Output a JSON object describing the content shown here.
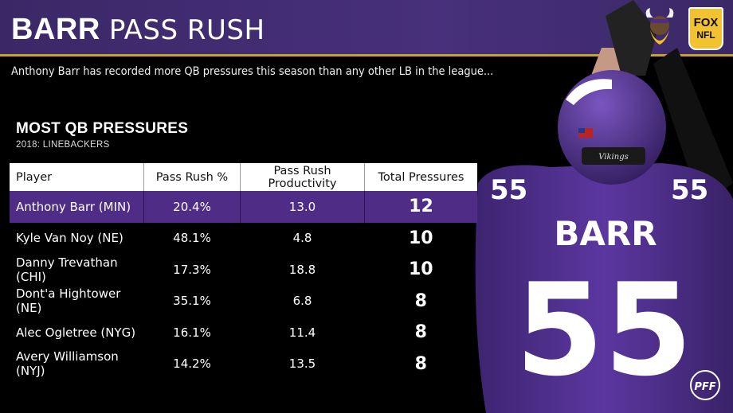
{
  "header": {
    "title_bold": "BARR",
    "title_light": "PASS RUSH"
  },
  "subtitle": "Anthony Barr has recorded more QB pressures this season than any other LB in the league...",
  "table": {
    "title": "MOST QB PRESSURES",
    "subtitle": "2018: LINEBACKERS",
    "columns": [
      "Player",
      "Pass Rush %",
      "Pass Rush Productivity",
      "Total Pressures"
    ],
    "rows": [
      {
        "player": "Anthony Barr (MIN)",
        "pass_rush_pct": "20.4%",
        "prp": "13.0",
        "total": "12",
        "highlight": true
      },
      {
        "player": "Kyle Van Noy (NE)",
        "pass_rush_pct": "48.1%",
        "prp": "4.8",
        "total": "10"
      },
      {
        "player": "Danny Trevathan (CHI)",
        "pass_rush_pct": "17.3%",
        "prp": "18.8",
        "total": "10"
      },
      {
        "player": "Dont'a Hightower (NE)",
        "pass_rush_pct": "35.1%",
        "prp": "6.8",
        "total": "8"
      },
      {
        "player": "Alec Ogletree (NYG)",
        "pass_rush_pct": "16.1%",
        "prp": "11.4",
        "total": "8"
      },
      {
        "player": "Avery Williamson (NYJ)",
        "pass_rush_pct": "14.2%",
        "prp": "13.5",
        "total": "8"
      }
    ]
  },
  "photo": {
    "jersey_name": "BARR",
    "jersey_number": "55",
    "helmet_label": "Vikings"
  },
  "logos": {
    "team": "vikings-logo",
    "network_top": "FOX",
    "network_bottom": "NFL",
    "watermark": "PFF"
  },
  "colors": {
    "purple": "#4f2d86",
    "gold": "#c9a227",
    "header": "#48307c"
  }
}
